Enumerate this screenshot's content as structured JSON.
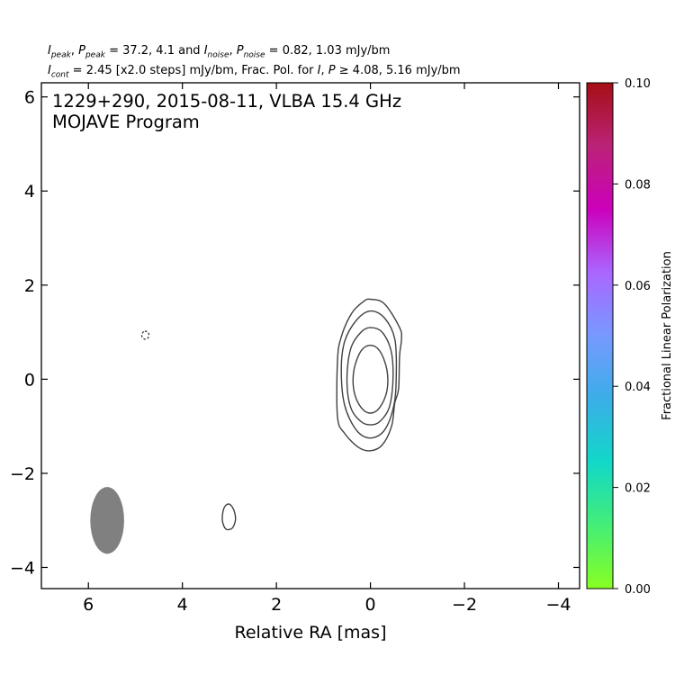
{
  "header": {
    "line1": {
      "ipeak": "I",
      "ipeak_sub": "peak",
      "ppeak": "P",
      "ppeak_sub": "peak",
      "peak_values": "= 37.2, 4.1 and",
      "inoise": "I",
      "inoise_sub": "noise",
      "pnoise": "P",
      "pnoise_sub": "noise",
      "noise_values": "= 0.82, 1.03 mJy/bm"
    },
    "line2": {
      "icont": "I",
      "icont_sub": "cont",
      "cont_text": "= 2.45 [x2.0 steps] mJy/bm, Frac. Pol. for",
      "i": "I",
      "p": "P",
      "threshold_text": "≥ 4.08, 5.16 mJy/bm"
    }
  },
  "chart_data": {
    "type": "contour",
    "title_line1": "1229+290, 2015-08-11, VLBA 15.4 GHz",
    "title_line2": "MOJAVE Program",
    "xlabel": "Relative RA [mas]",
    "ylabel": "",
    "xlim": [
      7.0,
      -4.45
    ],
    "ylim": [
      -4.45,
      6.3
    ],
    "x_ticks": [
      6,
      4,
      2,
      0,
      -2,
      -4
    ],
    "x_tick_labels": [
      "6",
      "4",
      "2",
      "0",
      "−2",
      "−4"
    ],
    "y_ticks": [
      6,
      4,
      2,
      0,
      -2,
      -4
    ],
    "y_tick_labels": [
      "6",
      "4",
      "2",
      "0",
      "−2",
      "−4"
    ],
    "grid": false,
    "contour_color": "#404040",
    "contours": [
      {
        "name": "level-1",
        "points": [
          [
            0.0,
            1.7
          ],
          [
            -0.3,
            1.6
          ],
          [
            -0.62,
            1.1
          ],
          [
            -0.66,
            0.85
          ],
          [
            -0.62,
            0.5
          ],
          [
            -0.6,
            -0.2
          ],
          [
            -0.52,
            -0.5
          ],
          [
            -0.45,
            -1.0
          ],
          [
            -0.25,
            -1.4
          ],
          [
            0.0,
            -1.52
          ],
          [
            0.25,
            -1.45
          ],
          [
            0.55,
            -1.15
          ],
          [
            0.7,
            -0.8
          ],
          [
            0.7,
            0.4
          ],
          [
            0.62,
            0.9
          ],
          [
            0.4,
            1.4
          ],
          [
            0.15,
            1.65
          ]
        ]
      },
      {
        "name": "level-2",
        "points": [
          [
            0.0,
            1.45
          ],
          [
            -0.3,
            1.3
          ],
          [
            -0.52,
            0.85
          ],
          [
            -0.55,
            0.1
          ],
          [
            -0.5,
            -0.55
          ],
          [
            -0.3,
            -1.08
          ],
          [
            0.0,
            -1.25
          ],
          [
            0.3,
            -1.08
          ],
          [
            0.55,
            -0.55
          ],
          [
            0.62,
            0.2
          ],
          [
            0.55,
            0.8
          ],
          [
            0.3,
            1.25
          ]
        ]
      },
      {
        "name": "level-3",
        "points": [
          [
            0.0,
            1.1
          ],
          [
            -0.25,
            1.0
          ],
          [
            -0.44,
            0.6
          ],
          [
            -0.48,
            0.0
          ],
          [
            -0.4,
            -0.6
          ],
          [
            -0.2,
            -0.9
          ],
          [
            0.0,
            -0.97
          ],
          [
            0.2,
            -0.9
          ],
          [
            0.42,
            -0.6
          ],
          [
            0.5,
            0.0
          ],
          [
            0.42,
            0.65
          ],
          [
            0.2,
            1.0
          ]
        ]
      },
      {
        "name": "level-4",
        "points": [
          [
            0.0,
            0.72
          ],
          [
            -0.2,
            0.6
          ],
          [
            -0.35,
            0.2
          ],
          [
            -0.35,
            -0.25
          ],
          [
            -0.2,
            -0.6
          ],
          [
            0.0,
            -0.72
          ],
          [
            0.2,
            -0.6
          ],
          [
            0.35,
            -0.25
          ],
          [
            0.35,
            0.2
          ],
          [
            0.2,
            0.6
          ]
        ]
      },
      {
        "name": "blob-small",
        "points": [
          [
            3.02,
            -2.65
          ],
          [
            2.92,
            -2.75
          ],
          [
            2.87,
            -2.95
          ],
          [
            2.9,
            -3.1
          ],
          [
            2.96,
            -3.18
          ],
          [
            3.08,
            -3.18
          ],
          [
            3.15,
            -3.0
          ],
          [
            3.12,
            -2.75
          ]
        ]
      },
      {
        "name": "blob-dashed",
        "dashed": true,
        "points": [
          [
            4.8,
            1.02
          ],
          [
            4.72,
            0.98
          ],
          [
            4.73,
            0.88
          ],
          [
            4.8,
            0.85
          ],
          [
            4.86,
            0.9
          ],
          [
            4.85,
            0.98
          ]
        ]
      }
    ],
    "beam": {
      "x": 5.6,
      "y": -3.0,
      "width_mas": 0.72,
      "height_mas": 1.42,
      "color": "#808080"
    },
    "colorbar": {
      "label": "Fractional Linear Polarization",
      "min": 0.0,
      "max": 0.1,
      "ticks": [
        0.0,
        0.02,
        0.04,
        0.06,
        0.08,
        0.1
      ],
      "tick_labels": [
        "0.00",
        "0.02",
        "0.04",
        "0.06",
        "0.08",
        "0.10"
      ],
      "colors": [
        "#88ff22",
        "#44ee77",
        "#11d8c8",
        "#3aaee8",
        "#7799ff",
        "#aa66ff",
        "#cc00bb",
        "#bb2277",
        "#a50f15"
      ]
    }
  }
}
